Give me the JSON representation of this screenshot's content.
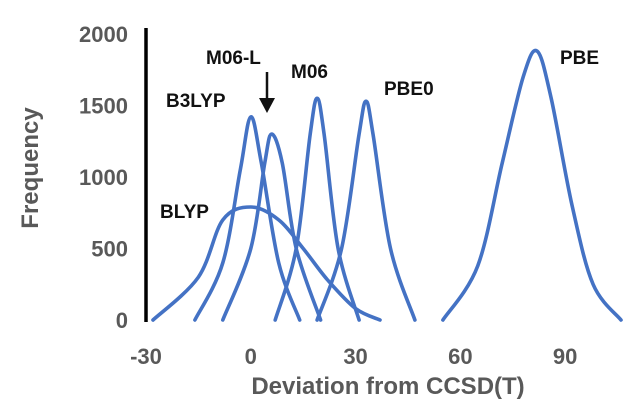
{
  "chart_data": {
    "type": "line",
    "title": "",
    "xlabel": "Deviation from CCSD(T)",
    "ylabel": "Frequency",
    "xlim": [
      -30,
      108
    ],
    "ylim": [
      0,
      2000
    ],
    "x_ticks": [
      "-30",
      "0",
      "30",
      "60",
      "90"
    ],
    "y_ticks": [
      "0",
      "500",
      "1000",
      "1500",
      "2000"
    ],
    "line_color": "#4472C4",
    "legend": "none",
    "grid": false,
    "series": [
      {
        "name": "BLYP",
        "values": [
          [
            -28,
            0
          ],
          [
            -15,
            300
          ],
          [
            -8,
            700
          ],
          [
            0,
            790
          ],
          [
            8,
            700
          ],
          [
            15,
            500
          ],
          [
            22,
            280
          ],
          [
            30,
            80
          ],
          [
            37,
            0
          ]
        ]
      },
      {
        "name": "B3LYP",
        "values": [
          [
            -16,
            0
          ],
          [
            -8,
            400
          ],
          [
            -3,
            1050
          ],
          [
            0,
            1420
          ],
          [
            3,
            1100
          ],
          [
            8,
            400
          ],
          [
            14,
            0
          ]
        ]
      },
      {
        "name": "M06-L",
        "values": [
          [
            -8,
            0
          ],
          [
            0,
            500
          ],
          [
            4,
            1100
          ],
          [
            6,
            1300
          ],
          [
            9,
            1100
          ],
          [
            13,
            500
          ],
          [
            20,
            0
          ]
        ]
      },
      {
        "name": "M06",
        "values": [
          [
            7,
            0
          ],
          [
            13,
            500
          ],
          [
            17,
            1300
          ],
          [
            19,
            1550
          ],
          [
            21,
            1300
          ],
          [
            25,
            500
          ],
          [
            31,
            0
          ]
        ]
      },
      {
        "name": "PBE0",
        "values": [
          [
            19,
            0
          ],
          [
            26,
            500
          ],
          [
            31,
            1300
          ],
          [
            33,
            1530
          ],
          [
            35,
            1300
          ],
          [
            40,
            500
          ],
          [
            47,
            0
          ]
        ]
      },
      {
        "name": "PBE",
        "values": [
          [
            55,
            0
          ],
          [
            65,
            380
          ],
          [
            72,
            1100
          ],
          [
            78,
            1700
          ],
          [
            82,
            1880
          ],
          [
            86,
            1550
          ],
          [
            92,
            800
          ],
          [
            98,
            250
          ],
          [
            106,
            0
          ]
        ]
      }
    ],
    "annotations": [
      {
        "text": "M06-L",
        "points_to": "M06-L",
        "arrow": true
      }
    ]
  }
}
